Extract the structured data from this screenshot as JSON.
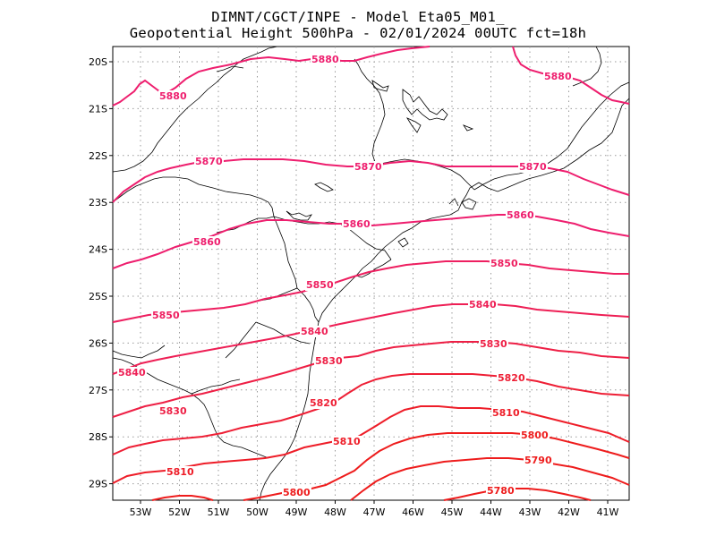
{
  "title": {
    "line1": "DIMNT/CGCT/INPE -  Model Eta05_M01_",
    "line2": "Geopotential Height 500hPa -  02/01/2024 00UTC fct=18h"
  },
  "axes": {
    "lon_labels": [
      "53W",
      "52W",
      "51W",
      "50W",
      "49W",
      "48W",
      "47W",
      "46W",
      "45W",
      "44W",
      "43W",
      "42W",
      "41W"
    ],
    "lat_labels": [
      "20S",
      "21S",
      "22S",
      "23S",
      "24S",
      "25S",
      "26S",
      "27S",
      "28S",
      "29S"
    ]
  },
  "colors": {
    "high": "#ee1e6e",
    "low": "#ee1c1c",
    "grid": "#999999",
    "coast": "#000000"
  },
  "contours": [
    {
      "level": 5880,
      "label": "5880",
      "color": "#ee1e6e"
    },
    {
      "level": 5870,
      "label": "5870",
      "color": "#ee1e6e"
    },
    {
      "level": 5860,
      "label": "5860",
      "color": "#ee1e6e"
    },
    {
      "level": 5850,
      "label": "5850",
      "color": "#ee1f60"
    },
    {
      "level": 5840,
      "label": "5840",
      "color": "#ee1f55"
    },
    {
      "level": 5830,
      "label": "5830",
      "color": "#ee1f45"
    },
    {
      "level": 5820,
      "label": "5820",
      "color": "#ee1f35"
    },
    {
      "level": 5810,
      "label": "5810",
      "color": "#ee1d28"
    },
    {
      "level": 5800,
      "label": "5800",
      "color": "#ee1c1c"
    },
    {
      "level": 5790,
      "label": "5790",
      "color": "#ee1c1c"
    },
    {
      "level": 5780,
      "label": "5780",
      "color": "#ee1c1c"
    }
  ]
}
